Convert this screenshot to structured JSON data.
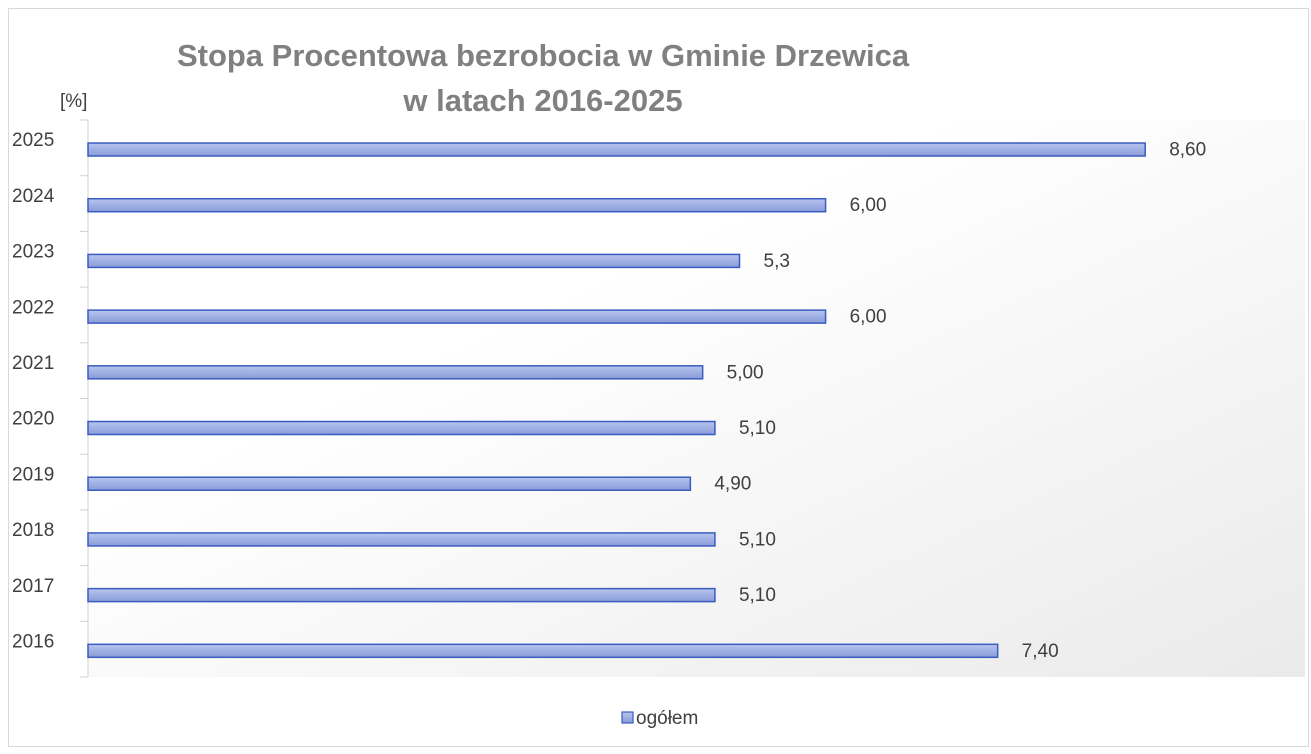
{
  "chart_data": {
    "type": "hbar",
    "title": [
      "Stopa Procentowa bezrobocia w Gminie Drzewica",
      "w latach 2016-2025"
    ],
    "unit_label": "[%]",
    "categories": [
      "2016",
      "2017",
      "2018",
      "2019",
      "2020",
      "2021",
      "2022",
      "2023",
      "2024",
      "2025"
    ],
    "series": [
      {
        "name": "ogółem",
        "color": "#9fb0e4",
        "stroke": "#3a5cc0",
        "values": [
          7.4,
          5.1,
          5.1,
          4.9,
          5.1,
          5.0,
          6.0,
          5.3,
          6.0,
          8.6
        ],
        "value_labels": [
          "7,40",
          "5,10",
          "5,10",
          "4,90",
          "5,10",
          "5,00",
          "6,00",
          "5,3",
          "6,00",
          "8,60"
        ]
      }
    ],
    "xlim": [
      0,
      9.9
    ],
    "legend": "bottom"
  }
}
